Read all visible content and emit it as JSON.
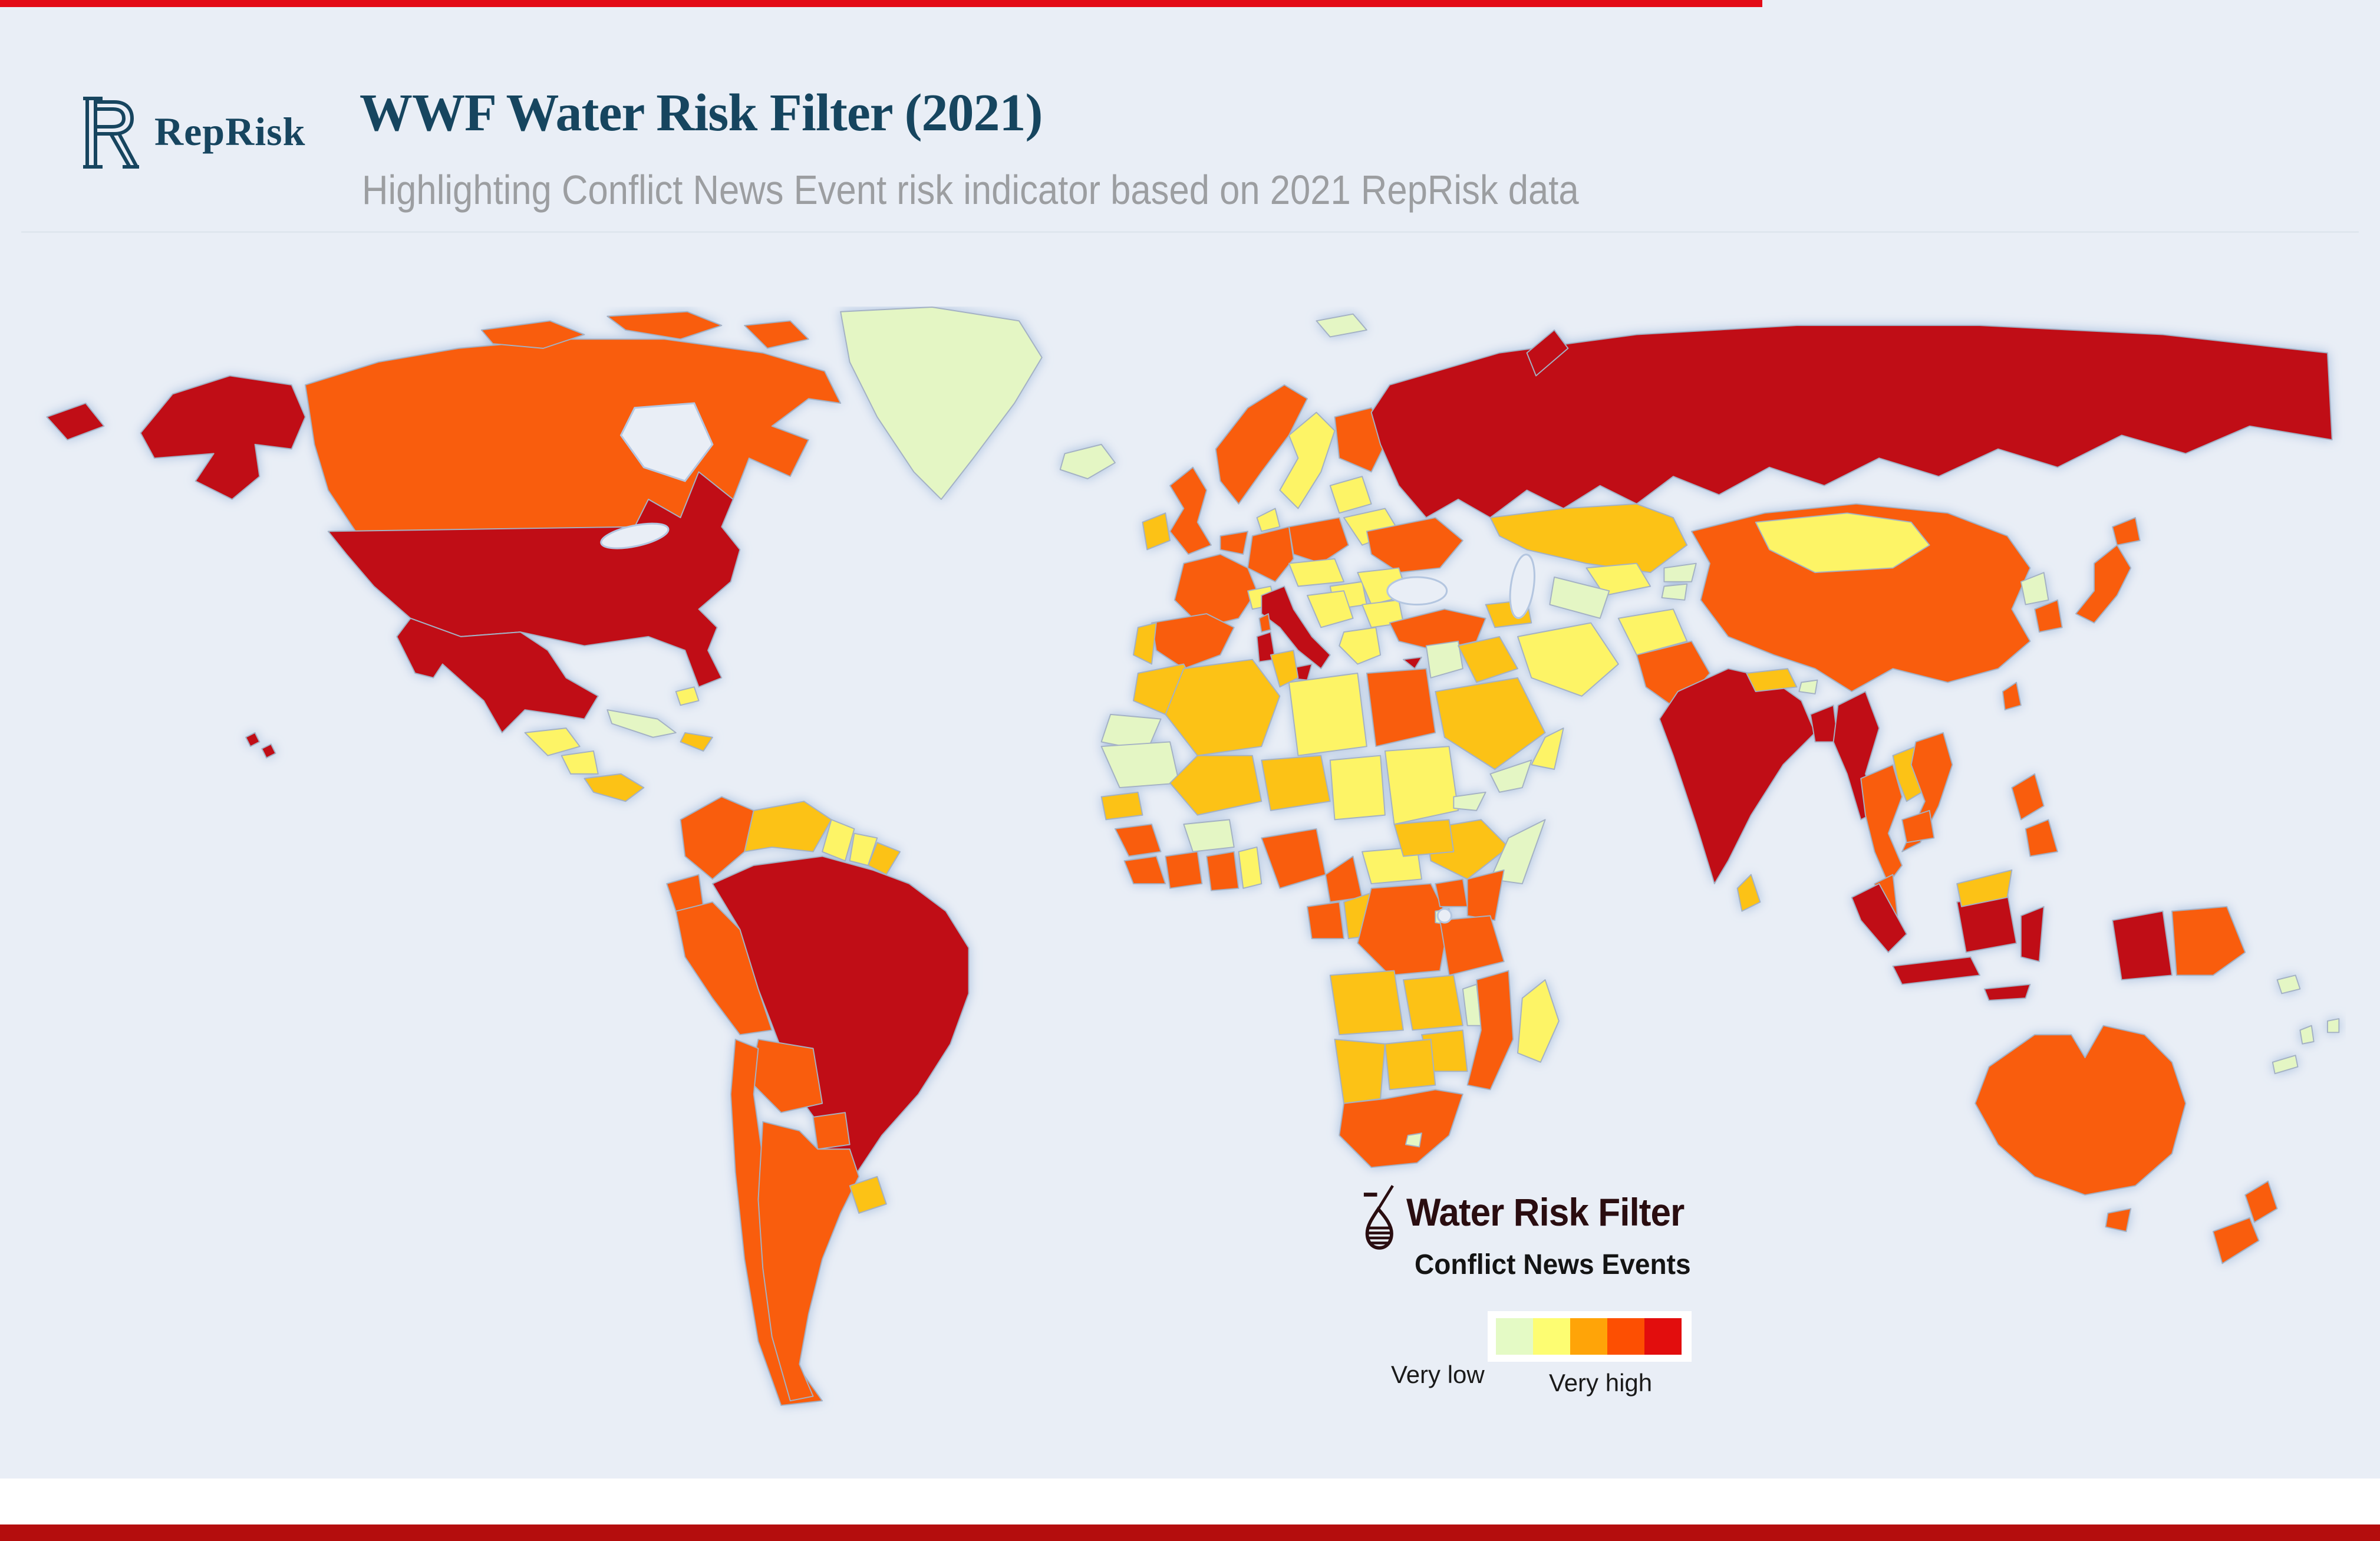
{
  "page": {
    "panel_bg": "#e9eef6",
    "top_bar_color": "#e30b17",
    "bottom_bar_color": "#b40d0d",
    "divider_color": "#dfe6ee"
  },
  "header": {
    "logo_text": "RepRisk",
    "logo_color": "#17455f",
    "title": "WWF Water Risk Filter (2021)",
    "title_color": "#16455f",
    "subtitle": "Highlighting Conflict News Event risk indicator based on 2021 RepRisk data",
    "subtitle_color": "#9c9ea1"
  },
  "legend": {
    "brand": "Water Risk Filter",
    "brand_color": "#2a0d10",
    "indicator": "Conflict News Events",
    "low_label": "Very low",
    "high_label": "Very high",
    "scale": [
      {
        "name": "very-low",
        "color": "#e4fac5"
      },
      {
        "name": "low",
        "color": "#fdfd72"
      },
      {
        "name": "medium",
        "color": "#ffa408"
      },
      {
        "name": "high",
        "color": "#fd4f02"
      },
      {
        "name": "very-high",
        "color": "#e20d0d"
      }
    ]
  },
  "map": {
    "ocean_color": "#e9eef6",
    "coast_halo_color": "#a9c0de",
    "border_color": "#a4b1c4",
    "levels": {
      "very_low": "#e4f6c4",
      "low": "#fdf466",
      "medium": "#fcc213",
      "high": "#f95d08",
      "very_high": "#c01016"
    },
    "countries": {
      "alaska": "very_high",
      "canada": "high",
      "canadian_arctic": "high",
      "greenland": "very_low",
      "iceland": "very_low",
      "usa": "very_high",
      "mexico": "very_high",
      "guatemala": "low",
      "nicaragua": "low",
      "costa_rica_panama": "medium",
      "cuba": "very_low",
      "hispaniola": "medium",
      "bahamas": "low",
      "hawaii": "very_high",
      "colombia": "high",
      "venezuela": "medium",
      "guyana": "low",
      "suriname": "low",
      "french_guiana": "medium",
      "ecuador": "high",
      "peru": "high",
      "brazil": "very_high",
      "bolivia": "high",
      "paraguay": "high",
      "chile": "high",
      "argentina": "high",
      "uruguay": "medium",
      "norway": "high",
      "sweden": "low",
      "finland": "high",
      "denmark": "low",
      "united_kingdom": "high",
      "ireland": "medium",
      "baltics": "low",
      "belarus": "low",
      "poland": "high",
      "germany": "high",
      "benelux": "high",
      "france": "high",
      "switzerland": "low",
      "czech_austria": "low",
      "hungary": "low",
      "ukraine": "high",
      "romania": "low",
      "balkans": "low",
      "bulgaria": "low",
      "greece": "low",
      "italy": "very_high",
      "corsica": "high",
      "spain": "high",
      "portugal": "medium",
      "russia": "very_high",
      "chukotka": "very_high",
      "novaya_zemlya": "very_high",
      "svalbard": "very_low",
      "turkey": "high",
      "cyprus": "very_high",
      "caucasus": "medium",
      "morocco": "medium",
      "western_sahara": "very_low",
      "mauritania": "very_low",
      "algeria": "medium",
      "tunisia": "medium",
      "libya": "low",
      "egypt": "high",
      "mali": "medium",
      "niger": "medium",
      "chad": "low",
      "sudan": "low",
      "south_sudan": "medium",
      "eritrea": "very_low",
      "ethiopia": "medium",
      "somalia": "very_low",
      "senegal": "medium",
      "guinea": "high",
      "sierra_leone_liberia": "high",
      "cote_divoire": "high",
      "ghana": "high",
      "togo_benin": "low",
      "burkina_faso": "very_low",
      "nigeria": "high",
      "cameroon": "high",
      "central_african_republic": "low",
      "gabon": "high",
      "congo": "medium",
      "dr_congo": "high",
      "uganda": "high",
      "kenya": "high",
      "rwanda_burundi": "very_low",
      "tanzania": "high",
      "angola": "medium",
      "zambia": "medium",
      "malawi": "very_low",
      "mozambique": "high",
      "zimbabwe": "medium",
      "botswana": "medium",
      "namibia": "medium",
      "south_africa": "high",
      "lesotho": "very_low",
      "madagascar": "low",
      "levant": "very_low",
      "iraq": "medium",
      "saudi_arabia": "medium",
      "yemen": "very_low",
      "oman": "low",
      "iran": "low",
      "kazakhstan": "medium",
      "uzbekistan": "low",
      "turkmenistan": "very_low",
      "kyrgyzstan": "very_low",
      "tajikistan": "very_low",
      "afghanistan": "low",
      "pakistan": "high",
      "india": "very_high",
      "nepal": "medium",
      "bhutan": "very_low",
      "bangladesh": "very_high",
      "sri_lanka": "medium",
      "myanmar": "very_high",
      "china": "high",
      "mongolia": "low",
      "north_korea": "very_low",
      "south_korea": "high",
      "japan": "high",
      "taiwan": "high",
      "thailand": "high",
      "laos": "medium",
      "vietnam": "high",
      "cambodia": "high",
      "malaysia": "high",
      "malaysia_borneo": "medium",
      "sumatra": "very_high",
      "java": "very_high",
      "kalimantan": "very_high",
      "sulawesi": "very_high",
      "west_papua": "very_high",
      "lesser_sunda": "very_high",
      "papua_new_guinea": "high",
      "philippines": "high",
      "australia": "high",
      "tasmania": "high",
      "new_zealand": "high",
      "solomon_islands": "very_low",
      "vanuatu": "very_low",
      "fiji": "very_low",
      "new_caledonia": "very_low"
    }
  }
}
